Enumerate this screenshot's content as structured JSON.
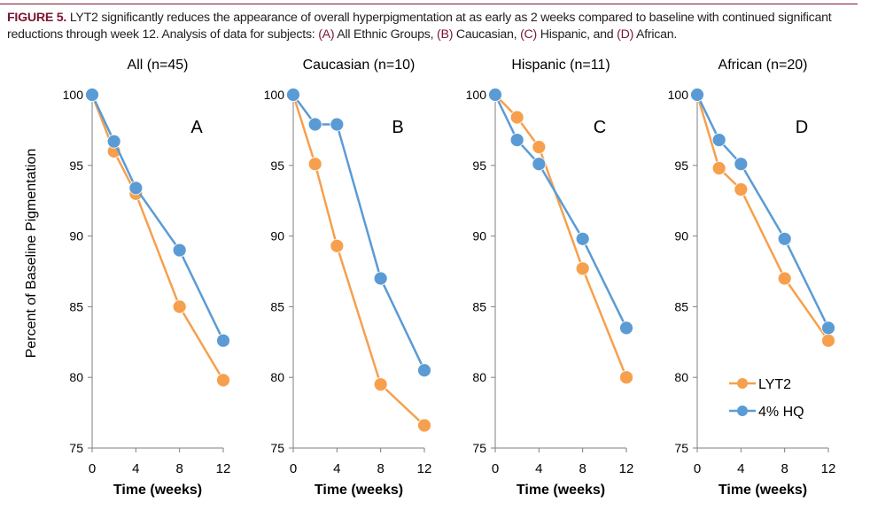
{
  "caption": {
    "figure_label": "FIGURE 5.",
    "text_before": "LYT2 significantly reduces the appearance of overall hyperpigmentation at as early as 2 weeks compared to baseline with continued significant reductions through week 12. Analysis of data for subjects: ",
    "label_a": "(A)",
    "text_a": " All Ethnic Groups, ",
    "label_b": "(B)",
    "text_b": " Caucasian, ",
    "label_c": "(C)",
    "text_c": " Hispanic, and ",
    "label_d": "(D)",
    "text_d": " African."
  },
  "ylabel": "Percent of Baseline Pigmentation",
  "legend": [
    "LYT2",
    "4% HQ"
  ],
  "colors": {
    "LYT2": "#f6a04d",
    "4% HQ": "#5b9bd5",
    "caption_accent": "#7a1530"
  },
  "chart_data": [
    {
      "type": "line",
      "title": "All (n=45)",
      "panel_letter": "A",
      "xlabel": "Time (weeks)",
      "ylabel": "Percent of Baseline Pigmentation",
      "xticks": [
        0,
        4,
        8,
        12
      ],
      "yticks": [
        75,
        80,
        85,
        90,
        95,
        100
      ],
      "xlim": [
        0,
        12
      ],
      "ylim": [
        75,
        100
      ],
      "series": [
        {
          "name": "LYT2",
          "x": [
            0,
            2,
            4,
            8,
            12
          ],
          "y": [
            100,
            96.0,
            93.0,
            85.0,
            79.8
          ]
        },
        {
          "name": "4% HQ",
          "x": [
            0,
            2,
            4,
            8,
            12
          ],
          "y": [
            100,
            96.7,
            93.4,
            89.0,
            82.6
          ]
        }
      ]
    },
    {
      "type": "line",
      "title": "Caucasian (n=10)",
      "panel_letter": "B",
      "xlabel": "Time (weeks)",
      "xticks": [
        0,
        4,
        8,
        12
      ],
      "yticks": [
        75,
        80,
        85,
        90,
        95,
        100
      ],
      "xlim": [
        0,
        12
      ],
      "ylim": [
        75,
        100
      ],
      "series": [
        {
          "name": "LYT2",
          "x": [
            0,
            2,
            4,
            8,
            12
          ],
          "y": [
            100,
            95.1,
            89.3,
            79.5,
            76.6
          ]
        },
        {
          "name": "4% HQ",
          "x": [
            0,
            2,
            4,
            8,
            12
          ],
          "y": [
            100,
            97.9,
            97.9,
            87.0,
            80.5
          ]
        }
      ]
    },
    {
      "type": "line",
      "title": "Hispanic (n=11)",
      "panel_letter": "C",
      "xlabel": "Time (weeks)",
      "xticks": [
        0,
        4,
        8,
        12
      ],
      "yticks": [
        75,
        80,
        85,
        90,
        95,
        100
      ],
      "xlim": [
        0,
        12
      ],
      "ylim": [
        75,
        100
      ],
      "series": [
        {
          "name": "LYT2",
          "x": [
            0,
            2,
            4,
            8,
            12
          ],
          "y": [
            100,
            98.4,
            96.3,
            87.7,
            80.0
          ]
        },
        {
          "name": "4% HQ",
          "x": [
            0,
            2,
            4,
            8,
            12
          ],
          "y": [
            100,
            96.8,
            95.1,
            89.8,
            83.5
          ]
        }
      ]
    },
    {
      "type": "line",
      "title": "African (n=20)",
      "panel_letter": "D",
      "xlabel": "Time (weeks)",
      "xticks": [
        0,
        4,
        8,
        12
      ],
      "yticks": [
        75,
        80,
        85,
        90,
        95,
        100
      ],
      "xlim": [
        0,
        12
      ],
      "ylim": [
        75,
        100
      ],
      "legend_position": "bottom-right",
      "series": [
        {
          "name": "LYT2",
          "x": [
            0,
            2,
            4,
            8,
            12
          ],
          "y": [
            100,
            94.8,
            93.3,
            87.0,
            82.6
          ]
        },
        {
          "name": "4% HQ",
          "x": [
            0,
            2,
            4,
            8,
            12
          ],
          "y": [
            100,
            96.8,
            95.1,
            89.8,
            83.5
          ]
        }
      ]
    }
  ]
}
